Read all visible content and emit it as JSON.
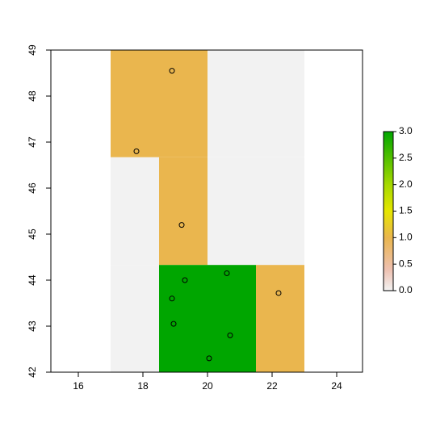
{
  "chart_data": {
    "type": "raster",
    "xlim": [
      15.15,
      24.8
    ],
    "ylim": [
      42,
      49
    ],
    "xticks": [
      16,
      18,
      20,
      22,
      24
    ],
    "yticks": [
      42,
      43,
      44,
      45,
      46,
      47,
      48,
      49
    ],
    "cells": [
      {
        "x": [
          17,
          18.5
        ],
        "y": [
          46.67,
          49
        ],
        "value": 1
      },
      {
        "x": [
          18.5,
          20
        ],
        "y": [
          46.67,
          49
        ],
        "value": 1
      },
      {
        "x": [
          20,
          21.5
        ],
        "y": [
          46.67,
          49
        ],
        "value": 0
      },
      {
        "x": [
          21.5,
          23
        ],
        "y": [
          46.67,
          49
        ],
        "value": 0
      },
      {
        "x": [
          17,
          18.5
        ],
        "y": [
          44.33,
          46.67
        ],
        "value": 0
      },
      {
        "x": [
          18.5,
          20
        ],
        "y": [
          44.33,
          46.67
        ],
        "value": 1
      },
      {
        "x": [
          20,
          21.5
        ],
        "y": [
          44.33,
          46.67
        ],
        "value": 0
      },
      {
        "x": [
          21.5,
          23
        ],
        "y": [
          44.33,
          46.67
        ],
        "value": 0
      },
      {
        "x": [
          17,
          18.5
        ],
        "y": [
          42,
          44.33
        ],
        "value": 0
      },
      {
        "x": [
          18.5,
          20
        ],
        "y": [
          42,
          44.33
        ],
        "value": 3
      },
      {
        "x": [
          20,
          21.5
        ],
        "y": [
          42,
          44.33
        ],
        "value": 3
      },
      {
        "x": [
          21.5,
          23
        ],
        "y": [
          42,
          44.33
        ],
        "value": 1
      }
    ],
    "points": {
      "x": [
        18.9,
        17.8,
        19.2,
        19.3,
        20.6,
        18.9,
        18.95,
        20.7,
        20.05,
        22.2
      ],
      "y": [
        48.55,
        46.8,
        45.2,
        44.0,
        44.15,
        43.6,
        43.05,
        42.8,
        42.3,
        43.72
      ]
    },
    "palette": [
      {
        "value": 0,
        "color": "#f2f2f2"
      },
      {
        "value": 0.4,
        "color": "#eec0b0"
      },
      {
        "value": 1,
        "color": "#eab64e"
      },
      {
        "value": 1.5,
        "color": "#e6e600"
      },
      {
        "value": 2,
        "color": "#a6d900"
      },
      {
        "value": 3,
        "color": "#00a600"
      }
    ],
    "colorbar": {
      "lim": [
        0,
        3
      ],
      "ticks": [
        {
          "value": 0,
          "label": "0.0"
        },
        {
          "value": 0.5,
          "label": "0.5"
        },
        {
          "value": 1,
          "label": "1.0"
        },
        {
          "value": 1.5,
          "label": "1.5"
        },
        {
          "value": 2,
          "label": "2.0"
        },
        {
          "value": 2.5,
          "label": "2.5"
        },
        {
          "value": 3,
          "label": "3.0"
        }
      ]
    }
  }
}
